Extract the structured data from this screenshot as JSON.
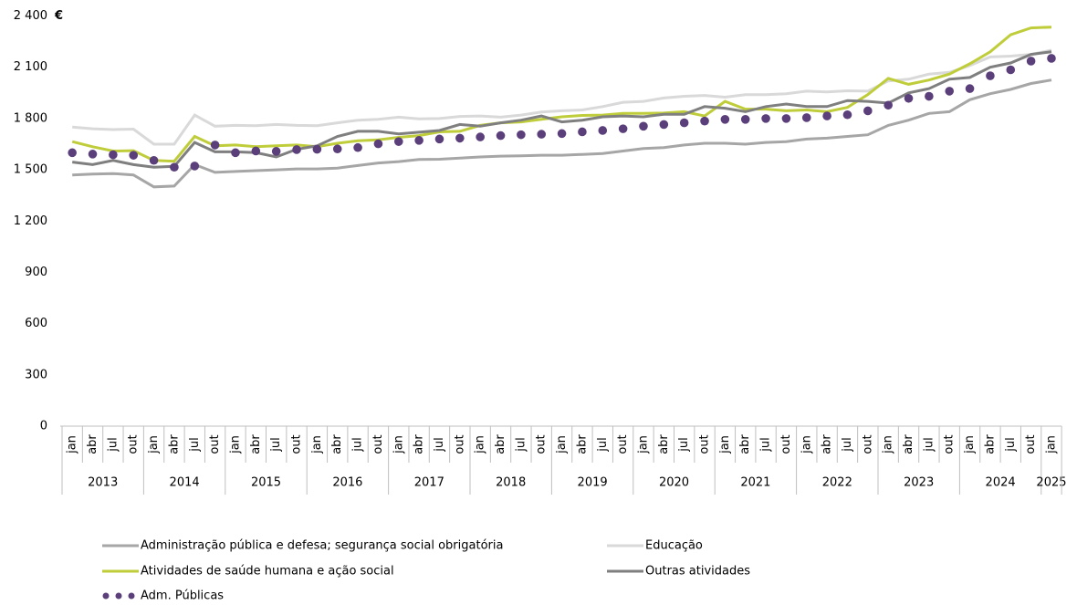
{
  "chart_data": {
    "type": "line",
    "unit": "€",
    "ylim": [
      0,
      2400
    ],
    "yticks": [
      0,
      300,
      600,
      900,
      {
        "value": 1200,
        "label": "1 200"
      },
      {
        "value": 1500,
        "label": "1 500"
      },
      {
        "value": 1800,
        "label": "1 800"
      },
      {
        "value": 2100,
        "label": "2 100"
      },
      {
        "value": 2400,
        "label": "2 400"
      }
    ],
    "categories": [
      "jan",
      "abr",
      "jul",
      "out",
      "jan",
      "abr",
      "jul",
      "out",
      "jan",
      "abr",
      "jul",
      "out",
      "jan",
      "abr",
      "jul",
      "out",
      "jan",
      "abr",
      "jul",
      "out",
      "jan",
      "abr",
      "jul",
      "out",
      "jan",
      "abr",
      "jul",
      "out",
      "jan",
      "abr",
      "jul",
      "out",
      "jan",
      "abr",
      "jul",
      "out",
      "jan",
      "abr",
      "jul",
      "out",
      "jan",
      "abr",
      "jul",
      "out",
      "jan",
      "abr",
      "jul",
      "out",
      "jan"
    ],
    "years": [
      "2013",
      null,
      null,
      null,
      "2014",
      null,
      null,
      null,
      "2015",
      null,
      null,
      null,
      "2016",
      null,
      null,
      null,
      "2017",
      null,
      null,
      null,
      "2018",
      null,
      null,
      null,
      "2019",
      null,
      null,
      null,
      "2020",
      null,
      null,
      null,
      "2021",
      null,
      null,
      null,
      "2022",
      null,
      null,
      null,
      "2023",
      null,
      null,
      null,
      "2024",
      null,
      null,
      null,
      "2025"
    ],
    "series": [
      {
        "name": "Administração pública e defesa; segurança social obrigatória",
        "color": "#a6a6a6",
        "marker": "line",
        "values": [
          1470,
          1475,
          1478,
          1470,
          1400,
          1405,
          1530,
          1485,
          1490,
          1495,
          1500,
          1505,
          1505,
          1510,
          1525,
          1540,
          1548,
          1560,
          1562,
          1568,
          1575,
          1580,
          1582,
          1585,
          1585,
          1590,
          1595,
          1610,
          1625,
          1630,
          1645,
          1655,
          1655,
          1650,
          1660,
          1665,
          1680,
          1685,
          1695,
          1705,
          1760,
          1790,
          1830,
          1840,
          1910,
          1945,
          1970,
          2005,
          2025
        ]
      },
      {
        "name": "Educação",
        "color": "#d9d9d9",
        "marker": "line",
        "values": [
          1750,
          1740,
          1735,
          1738,
          1650,
          1650,
          1820,
          1755,
          1760,
          1758,
          1765,
          1760,
          1758,
          1775,
          1790,
          1795,
          1808,
          1798,
          1800,
          1812,
          1815,
          1808,
          1820,
          1838,
          1845,
          1850,
          1870,
          1895,
          1900,
          1920,
          1930,
          1935,
          1925,
          1940,
          1940,
          1945,
          1960,
          1955,
          1962,
          1960,
          2020,
          2030,
          2060,
          2070,
          2110,
          2160,
          2165,
          2175,
          2200
        ]
      },
      {
        "name": "Atividades de saúde humana e ação social",
        "color": "#bfcd3a",
        "marker": "line",
        "values": [
          1665,
          1635,
          1610,
          1612,
          1555,
          1550,
          1695,
          1640,
          1645,
          1635,
          1640,
          1645,
          1635,
          1655,
          1670,
          1675,
          1690,
          1700,
          1722,
          1725,
          1760,
          1775,
          1780,
          1795,
          1810,
          1818,
          1820,
          1830,
          1830,
          1832,
          1840,
          1815,
          1900,
          1855,
          1855,
          1845,
          1850,
          1840,
          1865,
          1940,
          2035,
          2000,
          2025,
          2060,
          2120,
          2190,
          2290,
          2330,
          2335
        ]
      },
      {
        "name": "Outras atividades",
        "color": "#7f7f7f",
        "marker": "line",
        "values": [
          1545,
          1530,
          1555,
          1530,
          1515,
          1520,
          1660,
          1605,
          1605,
          1600,
          1575,
          1620,
          1640,
          1695,
          1725,
          1725,
          1710,
          1720,
          1730,
          1765,
          1755,
          1775,
          1790,
          1815,
          1780,
          1790,
          1810,
          1815,
          1810,
          1825,
          1825,
          1870,
          1860,
          1840,
          1870,
          1885,
          1870,
          1870,
          1905,
          1900,
          1890,
          1950,
          1975,
          2030,
          2040,
          2100,
          2125,
          2175,
          2190
        ]
      },
      {
        "name": "Adm. Públicas",
        "color": "#5b3f7a",
        "marker": "dots",
        "values": [
          1600,
          1592,
          1588,
          1585,
          1555,
          1515,
          1522,
          1645,
          1600,
          1610,
          1608,
          1618,
          1620,
          1622,
          1630,
          1652,
          1665,
          1672,
          1680,
          1685,
          1692,
          1700,
          1705,
          1708,
          1712,
          1722,
          1730,
          1740,
          1755,
          1765,
          1775,
          1785,
          1795,
          1795,
          1800,
          1800,
          1805,
          1815,
          1822,
          1845,
          1878,
          1918,
          1930,
          1960,
          1975,
          2050,
          2085,
          2136,
          2152
        ]
      }
    ]
  }
}
